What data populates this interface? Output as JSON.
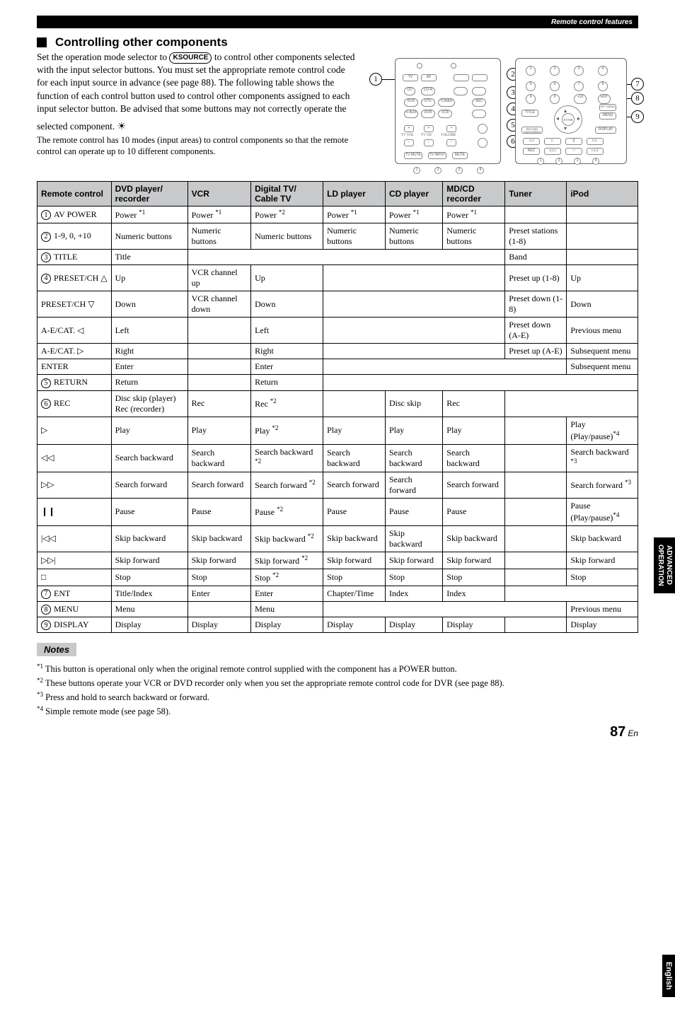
{
  "topbar": "Remote control features",
  "section_title": "Controlling other components",
  "intro_part1": "Set the operation mode selector to ",
  "source_badge_k": "K",
  "source_badge_text": "SOURCE",
  "intro_part2": " to control other components selected with the input selector buttons. You must set the appropriate remote control code for each input source in advance (see page 88). The following table shows the function of each control button used to control other components assigned to each input selector button. Be advised that some buttons may not correctly operate the selected component.",
  "tip_text": "The remote control has 10 modes (input areas) to control components so that the remote control can operate up to 10 different components.",
  "notes_label": "Notes",
  "notes": [
    "*1 This button is operational only when the original remote control supplied with the component has a POWER button.",
    "*2 These buttons operate your VCR or DVD recorder only when you set the appropriate remote control code for DVR (see page 88).",
    "*3 Press and hold to search backward or forward.",
    "*4 Simple remote mode (see page 58)."
  ],
  "sidetab1_line1": "ADVANCED",
  "sidetab1_line2": "OPERATION",
  "sidetab2": "English",
  "pagenum": "87",
  "pagenum_suffix": "En",
  "table_headers": [
    "Remote control",
    "DVD player/ recorder",
    "VCR",
    "Digital TV/ Cable TV",
    "LD player",
    "CD player",
    "MD/CD recorder",
    "Tuner",
    "iPod"
  ],
  "rows": [
    {
      "n": "1",
      "label": "AV POWER",
      "c": [
        "Power *1",
        "Power *1",
        "Power *2",
        "Power *1",
        "Power *1",
        "Power *1",
        "",
        ""
      ],
      "span": [
        1,
        1,
        1,
        1,
        1,
        1,
        1,
        1
      ]
    },
    {
      "n": "2",
      "label": "1-9, 0, +10",
      "c": [
        "Numeric buttons",
        "Numeric buttons",
        "Numeric buttons",
        "Numeric buttons",
        "Numeric buttons",
        "Numeric buttons",
        "Preset stations (1-8)",
        ""
      ],
      "span": [
        1,
        1,
        1,
        1,
        1,
        1,
        1,
        1
      ]
    },
    {
      "n": "3",
      "label": "TITLE",
      "c": [
        "Title",
        "",
        "Band",
        ""
      ],
      "span": [
        1,
        5,
        1,
        1
      ]
    },
    {
      "n": "4",
      "label": "PRESET/CH △",
      "c": [
        "Up",
        "VCR channel up",
        "Up",
        "",
        "Preset up (1-8)",
        "Up"
      ],
      "span": [
        1,
        1,
        1,
        3,
        1,
        1
      ]
    },
    {
      "n": "",
      "label": "PRESET/CH ▽",
      "c": [
        "Down",
        "VCR channel down",
        "Down",
        "",
        "Preset down (1-8)",
        "Down"
      ],
      "span": [
        1,
        1,
        1,
        3,
        1,
        1
      ]
    },
    {
      "n": "",
      "label": "A-E/CAT. ◁",
      "c": [
        "Left",
        "",
        "Left",
        "",
        "Preset down (A-E)",
        "Previous menu"
      ],
      "span": [
        1,
        1,
        1,
        3,
        1,
        1
      ]
    },
    {
      "n": "",
      "label": "A-E/CAT. ▷",
      "c": [
        "Right",
        "",
        "Right",
        "",
        "Preset up (A-E)",
        "Subsequent menu"
      ],
      "span": [
        1,
        1,
        1,
        3,
        1,
        1
      ]
    },
    {
      "n": "",
      "label": "ENTER",
      "c": [
        "Enter",
        "",
        "Enter",
        "",
        "Subsequent menu"
      ],
      "span": [
        1,
        1,
        1,
        4,
        1
      ]
    },
    {
      "n": "5",
      "label": "RETURN",
      "c": [
        "Return",
        "",
        "Return",
        ""
      ],
      "span": [
        1,
        1,
        1,
        5
      ]
    },
    {
      "n": "6",
      "label": "REC",
      "c": [
        "Disc skip (player)\nRec (recorder)",
        "Rec",
        "Rec *2",
        "",
        "Disc skip",
        "Rec",
        ""
      ],
      "span": [
        1,
        1,
        1,
        1,
        1,
        1,
        2
      ]
    },
    {
      "n": "",
      "label": "▷",
      "c": [
        "Play",
        "Play",
        "Play *2",
        "Play",
        "Play",
        "Play",
        "",
        "Play (Play/pause)*4"
      ],
      "span": [
        1,
        1,
        1,
        1,
        1,
        1,
        1,
        1
      ]
    },
    {
      "n": "",
      "label": "◁◁",
      "c": [
        "Search backward",
        "Search backward",
        "Search backward *2",
        "Search backward",
        "Search backward",
        "Search backward",
        "",
        "Search backward *3"
      ],
      "span": [
        1,
        1,
        1,
        1,
        1,
        1,
        1,
        1
      ]
    },
    {
      "n": "",
      "label": "▷▷",
      "c": [
        "Search forward",
        "Search forward",
        "Search forward *2",
        "Search forward",
        "Search forward",
        "Search forward",
        "",
        "Search forward *3"
      ],
      "span": [
        1,
        1,
        1,
        1,
        1,
        1,
        1,
        1
      ]
    },
    {
      "n": "",
      "label": "❙❙",
      "c": [
        "Pause",
        "Pause",
        "Pause *2",
        "Pause",
        "Pause",
        "Pause",
        "",
        "Pause (Play/pause)*4"
      ],
      "span": [
        1,
        1,
        1,
        1,
        1,
        1,
        1,
        1
      ]
    },
    {
      "n": "",
      "label": "|◁◁",
      "c": [
        "Skip backward",
        "Skip backward",
        "Skip backward *2",
        "Skip backward",
        "Skip backward",
        "Skip backward",
        "",
        "Skip backward"
      ],
      "span": [
        1,
        1,
        1,
        1,
        1,
        1,
        1,
        1
      ]
    },
    {
      "n": "",
      "label": "▷▷|",
      "c": [
        "Skip forward",
        "Skip forward",
        "Skip forward *2",
        "Skip forward",
        "Skip forward",
        "Skip forward",
        "",
        "Skip forward"
      ],
      "span": [
        1,
        1,
        1,
        1,
        1,
        1,
        1,
        1
      ]
    },
    {
      "n": "",
      "label": "□",
      "c": [
        "Stop",
        "Stop",
        "Stop *2",
        "Stop",
        "Stop",
        "Stop",
        "",
        "Stop"
      ],
      "span": [
        1,
        1,
        1,
        1,
        1,
        1,
        1,
        1
      ]
    },
    {
      "n": "7",
      "label": "ENT",
      "c": [
        "Title/Index",
        "Enter",
        "Enter",
        "Chapter/Time",
        "Index",
        "Index",
        ""
      ],
      "span": [
        1,
        1,
        1,
        1,
        1,
        1,
        2
      ]
    },
    {
      "n": "8",
      "label": "MENU",
      "c": [
        "Menu",
        "",
        "Menu",
        "",
        "Previous menu"
      ],
      "span": [
        1,
        1,
        1,
        4,
        1
      ]
    },
    {
      "n": "9",
      "label": "DISPLAY",
      "c": [
        "Display",
        "Display",
        "Display",
        "Display",
        "Display",
        "Display",
        "",
        "Display"
      ],
      "span": [
        1,
        1,
        1,
        1,
        1,
        1,
        1,
        1
      ]
    }
  ]
}
